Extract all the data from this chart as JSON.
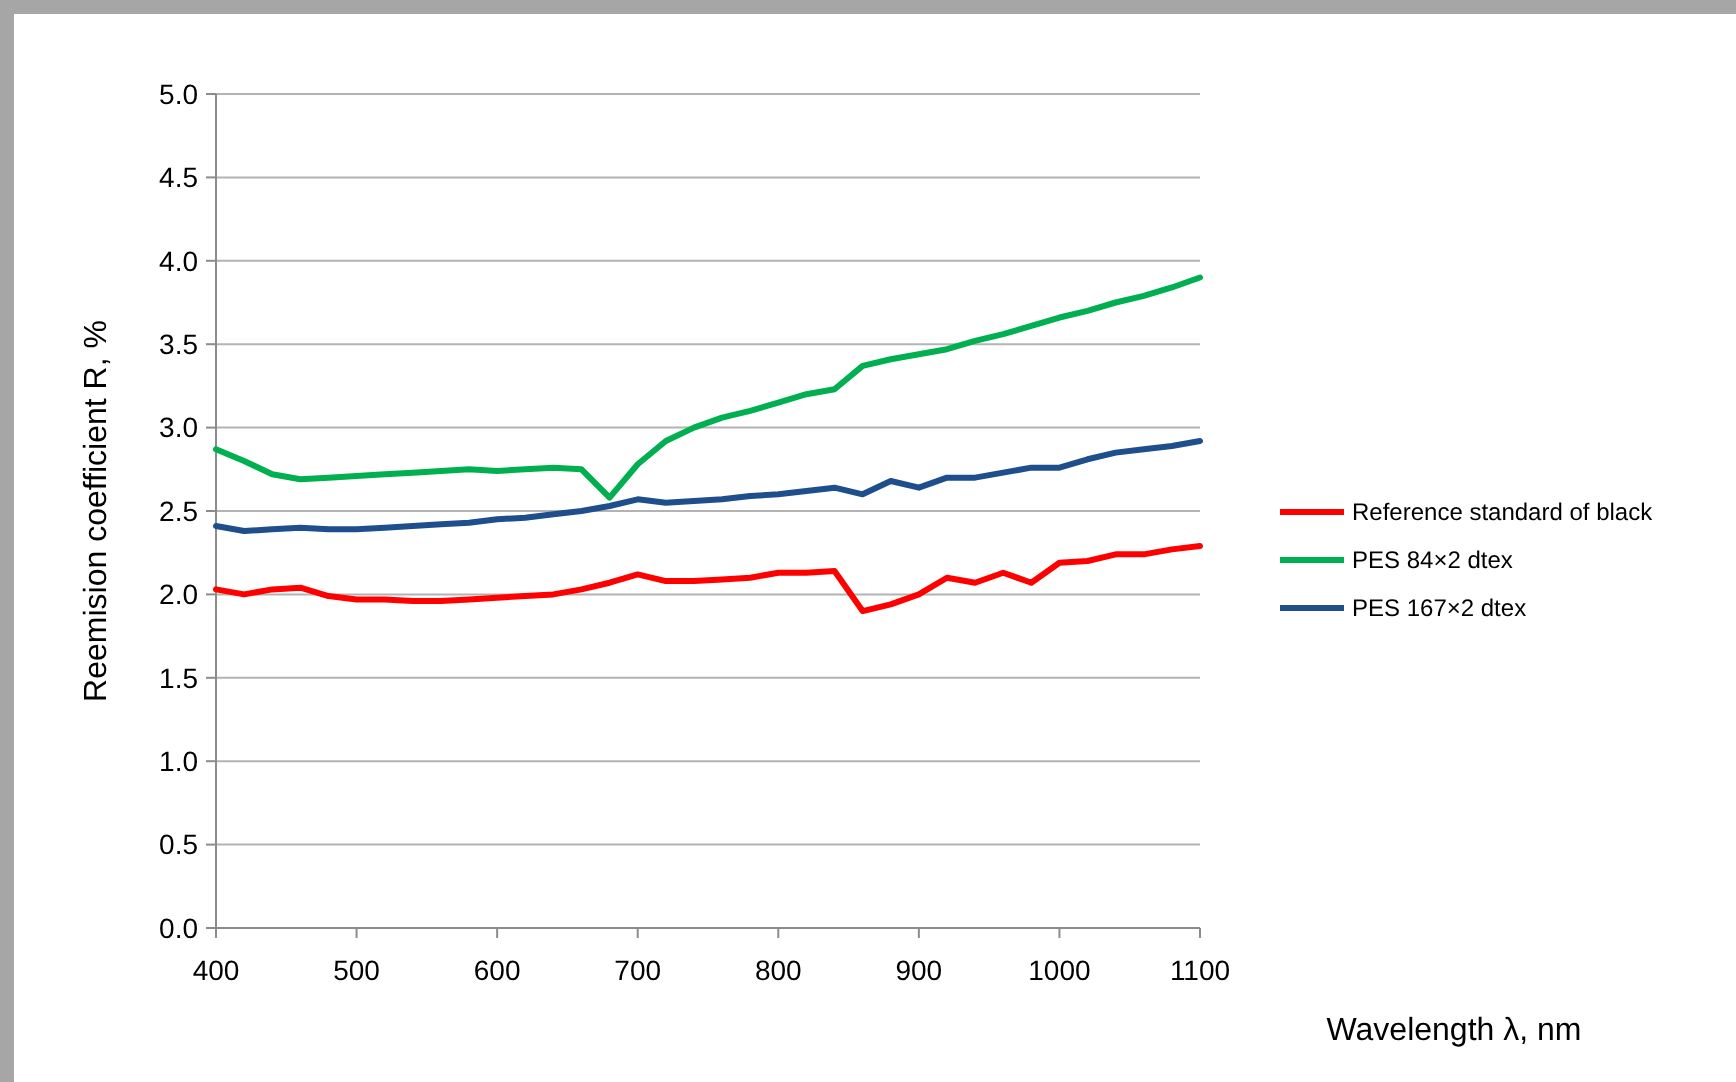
{
  "chart_data": {
    "type": "line",
    "xlabel": "Wavelength λ, nm",
    "ylabel": "Reemision coefficient R, %",
    "x": [
      400,
      420,
      440,
      460,
      480,
      500,
      520,
      540,
      560,
      580,
      600,
      620,
      640,
      660,
      680,
      700,
      720,
      740,
      760,
      780,
      800,
      820,
      840,
      860,
      880,
      900,
      920,
      940,
      960,
      980,
      1000,
      1020,
      1040,
      1060,
      1080,
      1100
    ],
    "series": [
      {
        "name": "Reference standard of black",
        "color": "#ff0000",
        "values": [
          2.03,
          2.0,
          2.03,
          2.04,
          1.99,
          1.97,
          1.97,
          1.96,
          1.96,
          1.97,
          1.98,
          1.99,
          2.0,
          2.03,
          2.07,
          2.12,
          2.08,
          2.08,
          2.09,
          2.1,
          2.13,
          2.13,
          2.14,
          1.9,
          1.94,
          2.0,
          2.1,
          2.07,
          2.13,
          2.07,
          2.19,
          2.2,
          2.24,
          2.24,
          2.27,
          2.29
        ]
      },
      {
        "name": "PES 84×2 dtex",
        "color": "#00b050",
        "values": [
          2.87,
          2.8,
          2.72,
          2.69,
          2.7,
          2.71,
          2.72,
          2.73,
          2.74,
          2.75,
          2.74,
          2.75,
          2.76,
          2.75,
          2.58,
          2.78,
          2.92,
          3.0,
          3.06,
          3.1,
          3.15,
          3.2,
          3.23,
          3.37,
          3.41,
          3.44,
          3.47,
          3.52,
          3.56,
          3.61,
          3.66,
          3.7,
          3.75,
          3.79,
          3.84,
          3.9
        ]
      },
      {
        "name": "PES 167×2 dtex",
        "color": "#1f4e8c",
        "values": [
          2.41,
          2.38,
          2.39,
          2.4,
          2.39,
          2.39,
          2.4,
          2.41,
          2.42,
          2.43,
          2.45,
          2.46,
          2.48,
          2.5,
          2.53,
          2.57,
          2.55,
          2.56,
          2.57,
          2.59,
          2.6,
          2.62,
          2.64,
          2.6,
          2.68,
          2.64,
          2.7,
          2.7,
          2.73,
          2.76,
          2.76,
          2.81,
          2.85,
          2.87,
          2.89,
          2.92
        ]
      }
    ],
    "xlim": [
      400,
      1100
    ],
    "xticks": [
      400,
      500,
      600,
      700,
      800,
      900,
      1000,
      1100
    ],
    "ylim": [
      0,
      5
    ],
    "yticks": [
      {
        "value": 0,
        "label": "0.0"
      },
      {
        "value": 0.5,
        "label": "0.5"
      },
      {
        "value": 1,
        "label": "1.0"
      },
      {
        "value": 1.5,
        "label": "1.5"
      },
      {
        "value": 2,
        "label": "2.0"
      },
      {
        "value": 2.5,
        "label": "2.5"
      },
      {
        "value": 3,
        "label": "3.0"
      },
      {
        "value": 3.5,
        "label": "3.5"
      },
      {
        "value": 4,
        "label": "4.0"
      },
      {
        "value": 4.5,
        "label": "4.5"
      },
      {
        "value": 5,
        "label": "5.0"
      }
    ],
    "grid": "y",
    "legend": "right",
    "marker": "none",
    "line_style": "solid"
  }
}
